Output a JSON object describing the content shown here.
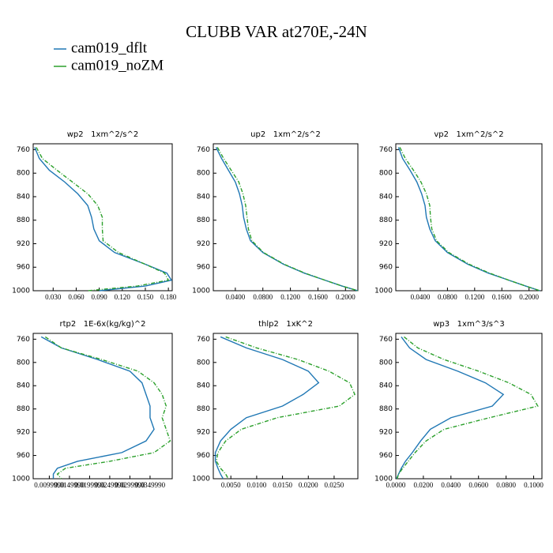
{
  "title": "CLUBB VAR at270E,-24N",
  "chart_data": [
    {
      "type": "line",
      "title": "wp2   1xm^2/s^2",
      "y_inverted": true,
      "y": [
        756,
        775,
        795,
        815,
        835,
        855,
        875,
        895,
        915,
        935,
        955,
        970,
        982,
        992,
        1000
      ],
      "ylim": [
        750,
        1000
      ],
      "yticks": [
        760,
        800,
        840,
        880,
        920,
        960,
        1000
      ],
      "xlim": [
        0.004,
        0.185
      ],
      "xticks": [
        {
          "value": 0.03,
          "label": "0.030"
        },
        {
          "value": 0.06,
          "label": "0.060"
        },
        {
          "value": 0.09,
          "label": "0.090"
        },
        {
          "value": 0.12,
          "label": "0.120"
        },
        {
          "value": 0.15,
          "label": "0.150"
        },
        {
          "value": 0.18,
          "label": "0.180"
        }
      ],
      "series": [
        {
          "name": "cam019_dflt",
          "color": "#1f77b4",
          "dash": false,
          "values": [
            0.006,
            0.012,
            0.025,
            0.045,
            0.062,
            0.075,
            0.08,
            0.083,
            0.09,
            0.11,
            0.15,
            0.178,
            0.184,
            0.15,
            0.09
          ]
        },
        {
          "name": "cam019_noZM",
          "color": "#2ca02c",
          "dash": true,
          "values": [
            0.008,
            0.016,
            0.035,
            0.055,
            0.075,
            0.088,
            0.094,
            0.094,
            0.095,
            0.115,
            0.15,
            0.175,
            0.18,
            0.14,
            0.075
          ]
        }
      ]
    },
    {
      "type": "line",
      "title": "up2   1xm^2/s^2",
      "y_inverted": true,
      "y": [
        756,
        775,
        795,
        815,
        835,
        855,
        875,
        895,
        915,
        935,
        955,
        970,
        982,
        992,
        1000
      ],
      "ylim": [
        750,
        1000
      ],
      "yticks": [
        760,
        800,
        840,
        880,
        920,
        960,
        1000
      ],
      "xlim": [
        0.008,
        0.218
      ],
      "xticks": [
        {
          "value": 0.04,
          "label": "0.0400"
        },
        {
          "value": 0.08,
          "label": "0.0800"
        },
        {
          "value": 0.12,
          "label": "0.1200"
        },
        {
          "value": 0.16,
          "label": "0.1600"
        },
        {
          "value": 0.2,
          "label": "0.2000"
        }
      ],
      "series": [
        {
          "name": "cam019_dflt",
          "color": "#1f77b4",
          "dash": false,
          "values": [
            0.012,
            0.02,
            0.03,
            0.04,
            0.046,
            0.05,
            0.052,
            0.056,
            0.062,
            0.08,
            0.11,
            0.14,
            0.17,
            0.195,
            0.218
          ]
        },
        {
          "name": "cam019_noZM",
          "color": "#2ca02c",
          "dash": true,
          "values": [
            0.014,
            0.023,
            0.034,
            0.045,
            0.051,
            0.055,
            0.057,
            0.059,
            0.064,
            0.081,
            0.111,
            0.141,
            0.17,
            0.195,
            0.218
          ]
        }
      ]
    },
    {
      "type": "line",
      "title": "vp2   1xm^2/s^2",
      "y_inverted": true,
      "y": [
        756,
        775,
        795,
        815,
        835,
        855,
        875,
        895,
        915,
        935,
        955,
        970,
        982,
        992,
        1000
      ],
      "ylim": [
        750,
        1000
      ],
      "yticks": [
        760,
        800,
        840,
        880,
        920,
        960,
        1000
      ],
      "xlim": [
        0.004,
        0.219
      ],
      "xticks": [
        {
          "value": 0.04,
          "label": "0.0400"
        },
        {
          "value": 0.08,
          "label": "0.0800"
        },
        {
          "value": 0.12,
          "label": "0.1200"
        },
        {
          "value": 0.16,
          "label": "0.1600"
        },
        {
          "value": 0.2,
          "label": "0.2000"
        }
      ],
      "series": [
        {
          "name": "cam019_dflt",
          "color": "#1f77b4",
          "dash": false,
          "values": [
            0.008,
            0.014,
            0.025,
            0.035,
            0.042,
            0.047,
            0.049,
            0.054,
            0.062,
            0.08,
            0.11,
            0.14,
            0.17,
            0.195,
            0.216
          ]
        },
        {
          "name": "cam019_noZM",
          "color": "#2ca02c",
          "dash": true,
          "values": [
            0.01,
            0.018,
            0.03,
            0.041,
            0.049,
            0.054,
            0.055,
            0.057,
            0.064,
            0.082,
            0.112,
            0.142,
            0.17,
            0.195,
            0.216
          ]
        }
      ]
    },
    {
      "type": "line",
      "title": "rtp2   1E-6x(kg/kg)^2",
      "y_inverted": true,
      "y": [
        756,
        775,
        795,
        815,
        835,
        855,
        875,
        895,
        915,
        935,
        955,
        970,
        982,
        992,
        1000
      ],
      "ylim": [
        750,
        1000
      ],
      "yticks": [
        760,
        800,
        840,
        880,
        920,
        960,
        1000
      ],
      "xlim": [
        0.006,
        0.0405
      ],
      "xticks": [
        {
          "value": 0.01,
          "label": "0.0099990"
        },
        {
          "value": 0.015,
          "label": "0.0149990"
        },
        {
          "value": 0.02,
          "label": "0.0199990"
        },
        {
          "value": 0.025,
          "label": "0.0249990"
        },
        {
          "value": 0.03,
          "label": "0.0299990"
        },
        {
          "value": 0.035,
          "label": "0.0349990"
        }
      ],
      "series": [
        {
          "name": "cam019_dflt",
          "color": "#1f77b4",
          "dash": false,
          "values": [
            0.008,
            0.013,
            0.022,
            0.03,
            0.033,
            0.034,
            0.035,
            0.035,
            0.036,
            0.034,
            0.028,
            0.017,
            0.012,
            0.011,
            0.011
          ]
        },
        {
          "name": "cam019_noZM",
          "color": "#2ca02c",
          "dash": true,
          "values": [
            0.009,
            0.013,
            0.023,
            0.032,
            0.036,
            0.038,
            0.039,
            0.038,
            0.039,
            0.04,
            0.036,
            0.025,
            0.014,
            0.012,
            0.013
          ]
        }
      ]
    },
    {
      "type": "line",
      "title": "thlp2   1xK^2",
      "y_inverted": true,
      "y": [
        756,
        775,
        795,
        815,
        835,
        855,
        875,
        895,
        915,
        935,
        955,
        970,
        982,
        992,
        1000
      ],
      "ylim": [
        750,
        1000
      ],
      "yticks": [
        760,
        800,
        840,
        880,
        920,
        960,
        1000
      ],
      "xlim": [
        0.0016,
        0.0296
      ],
      "xticks": [
        {
          "value": 0.005,
          "label": "0.0050"
        },
        {
          "value": 0.01,
          "label": "0.0100"
        },
        {
          "value": 0.015,
          "label": "0.0150"
        },
        {
          "value": 0.02,
          "label": "0.0200"
        },
        {
          "value": 0.025,
          "label": "0.0250"
        }
      ],
      "series": [
        {
          "name": "cam019_dflt",
          "color": "#1f77b4",
          "dash": false,
          "values": [
            0.003,
            0.008,
            0.015,
            0.02,
            0.022,
            0.019,
            0.015,
            0.008,
            0.005,
            0.003,
            0.002,
            0.002,
            0.0025,
            0.003,
            0.0035
          ]
        },
        {
          "name": "cam019_noZM",
          "color": "#2ca02c",
          "dash": true,
          "values": [
            0.004,
            0.01,
            0.018,
            0.024,
            0.028,
            0.029,
            0.026,
            0.014,
            0.007,
            0.004,
            0.0025,
            0.0022,
            0.003,
            0.004,
            0.0045
          ]
        }
      ]
    },
    {
      "type": "line",
      "title": "wp3   1xm^3/s^3",
      "y_inverted": true,
      "y": [
        756,
        775,
        795,
        815,
        835,
        855,
        875,
        895,
        915,
        935,
        955,
        970,
        982,
        992,
        1000
      ],
      "ylim": [
        750,
        1000
      ],
      "yticks": [
        760,
        800,
        840,
        880,
        920,
        960,
        1000
      ],
      "xlim": [
        0,
        0.106
      ],
      "xticks": [
        {
          "value": 0,
          "label": "0.0000"
        },
        {
          "value": 0.02,
          "label": "0.0200"
        },
        {
          "value": 0.04,
          "label": "0.0400"
        },
        {
          "value": 0.06,
          "label": "0.0600"
        },
        {
          "value": 0.08,
          "label": "0.0800"
        },
        {
          "value": 0.1,
          "label": "0.1000"
        }
      ],
      "series": [
        {
          "name": "cam019_dflt",
          "color": "#1f77b4",
          "dash": false,
          "values": [
            0.004,
            0.01,
            0.022,
            0.045,
            0.065,
            0.078,
            0.07,
            0.04,
            0.025,
            0.018,
            0.012,
            0.007,
            0.004,
            0.002,
            0.0005
          ]
        },
        {
          "name": "cam019_noZM",
          "color": "#2ca02c",
          "dash": true,
          "values": [
            0.006,
            0.016,
            0.035,
            0.06,
            0.082,
            0.098,
            0.103,
            0.068,
            0.035,
            0.022,
            0.014,
            0.009,
            0.005,
            0.002,
            0.001
          ]
        }
      ]
    }
  ]
}
